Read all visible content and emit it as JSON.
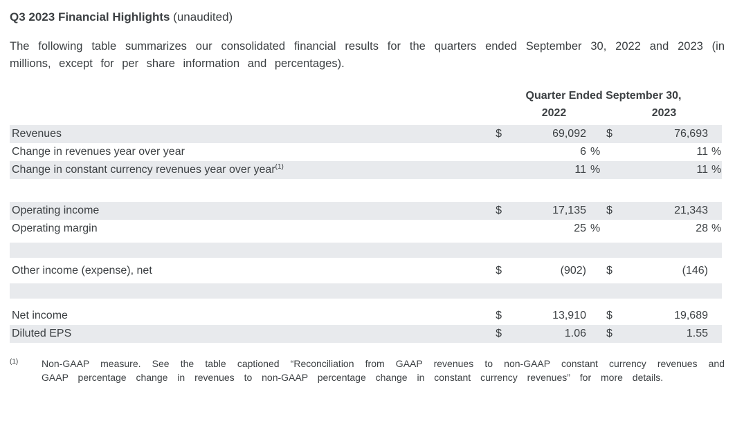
{
  "document": {
    "title": "Q3 2023 Financial Highlights",
    "title_suffix": " (unaudited)",
    "intro": "The following table summarizes our consolidated financial results for the quarters ended September 30, 2022 and 2023 (in millions, except for per share information and percentages)."
  },
  "table": {
    "period_header": "Quarter Ended September 30,",
    "years": [
      "2022",
      "2023"
    ],
    "rows": [
      {
        "label": "Revenues",
        "sup": "",
        "c2022": {
          "cur": "$",
          "val": "69,092",
          "pct": ""
        },
        "c2023": {
          "cur": "$",
          "val": "76,693",
          "pct": ""
        }
      },
      {
        "label": "Change in revenues year over year",
        "sup": "",
        "c2022": {
          "cur": "",
          "val": "6",
          "pct": "%"
        },
        "c2023": {
          "cur": "",
          "val": "11",
          "pct": "%"
        }
      },
      {
        "label": "Change in constant currency revenues year over year",
        "sup": "(1)",
        "c2022": {
          "cur": "",
          "val": "11",
          "pct": "%"
        },
        "c2023": {
          "cur": "",
          "val": "11",
          "pct": "%"
        }
      },
      {
        "label": "Operating income",
        "sup": "",
        "c2022": {
          "cur": "$",
          "val": "17,135",
          "pct": ""
        },
        "c2023": {
          "cur": "$",
          "val": "21,343",
          "pct": ""
        }
      },
      {
        "label": "Operating margin",
        "sup": "",
        "c2022": {
          "cur": "",
          "val": "25",
          "pct": "%"
        },
        "c2023": {
          "cur": "",
          "val": "28",
          "pct": "%"
        }
      },
      {
        "label": "Other income (expense), net",
        "sup": "",
        "c2022": {
          "cur": "$",
          "val": "(902)",
          "pct": ""
        },
        "c2023": {
          "cur": "$",
          "val": "(146)",
          "pct": ""
        }
      },
      {
        "label": "Net income",
        "sup": "",
        "c2022": {
          "cur": "$",
          "val": "13,910",
          "pct": ""
        },
        "c2023": {
          "cur": "$",
          "val": "19,689",
          "pct": ""
        }
      },
      {
        "label": "Diluted EPS",
        "sup": "",
        "c2022": {
          "cur": "$",
          "val": "1.06",
          "pct": ""
        },
        "c2023": {
          "cur": "$",
          "val": "1.55",
          "pct": ""
        }
      }
    ]
  },
  "footnote": {
    "marker": "(1)",
    "text": "Non-GAAP measure. See the table captioned “Reconciliation from GAAP revenues to non-GAAP constant currency revenues and GAAP percentage change in revenues to non-GAAP percentage change in constant currency revenues” for more details."
  },
  "colors": {
    "text": "#3c4043",
    "row_shade": "#e8eaed",
    "background": "#ffffff"
  }
}
